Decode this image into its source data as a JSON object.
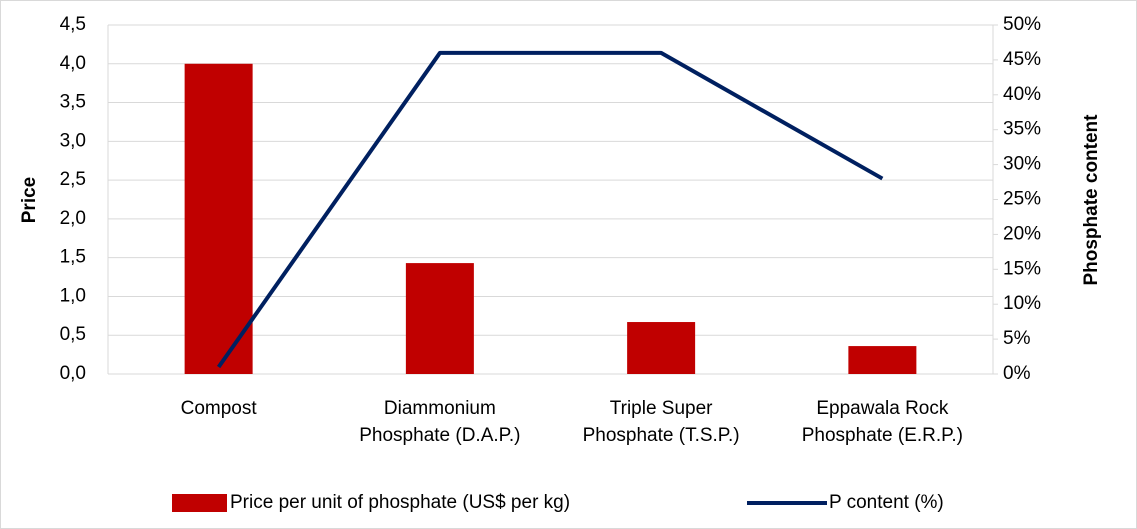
{
  "chart_data": {
    "type": "bar",
    "categories": [
      "Compost",
      "Diammonium\nPhosphate (D.A.P.)",
      "Triple Super\nPhosphate (T.S.P.)",
      "Eppawala Rock\nPhosphate (E.R.P.)"
    ],
    "series": [
      {
        "name": "Price per unit of phosphate (US$ per kg)",
        "color": "#c00000",
        "type": "bar",
        "values": [
          4.0,
          1.43,
          0.67,
          0.36
        ]
      },
      {
        "name": "P content (%)",
        "color": "#002060",
        "type": "line",
        "axis": "y2",
        "values": [
          1,
          46,
          46,
          28
        ]
      }
    ],
    "ylabel": "Price",
    "y2label": "Phosphate content",
    "ylim": [
      0,
      4.5
    ],
    "yticks": [
      {
        "value": 0,
        "label": "0,0"
      },
      {
        "value": 0.5,
        "label": "0,5"
      },
      {
        "value": 1,
        "label": "1,0"
      },
      {
        "value": 1.5,
        "label": "1,5"
      },
      {
        "value": 2,
        "label": "2,0"
      },
      {
        "value": 2.5,
        "label": "2,5"
      },
      {
        "value": 3,
        "label": "3,0"
      },
      {
        "value": 3.5,
        "label": "3,5"
      },
      {
        "value": 4,
        "label": "4,0"
      },
      {
        "value": 4.5,
        "label": "4,5"
      }
    ],
    "y2lim": [
      0,
      50
    ],
    "y2ticks": [
      {
        "value": 0,
        "label": "0%"
      },
      {
        "value": 5,
        "label": "5%"
      },
      {
        "value": 10,
        "label": "10%"
      },
      {
        "value": 15,
        "label": "15%"
      },
      {
        "value": 20,
        "label": "20%"
      },
      {
        "value": 25,
        "label": "25%"
      },
      {
        "value": 30,
        "label": "30%"
      },
      {
        "value": 35,
        "label": "35%"
      },
      {
        "value": 40,
        "label": "40%"
      },
      {
        "value": 45,
        "label": "45%"
      },
      {
        "value": 50,
        "label": "50%"
      }
    ],
    "grid": true,
    "legend": "bottom"
  }
}
